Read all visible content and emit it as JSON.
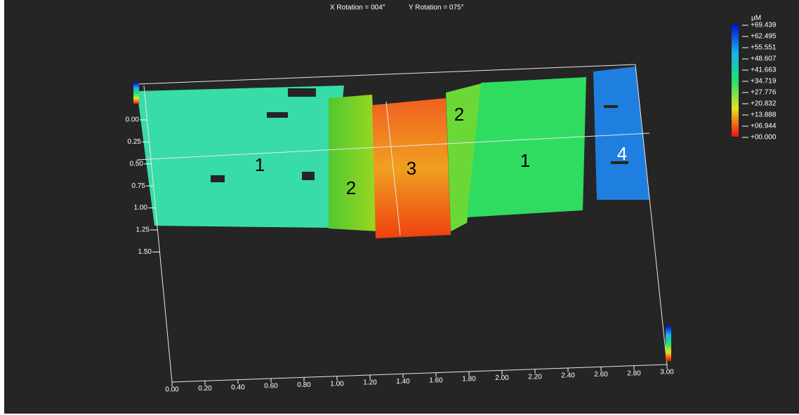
{
  "header": {
    "x_rotation": "X Rotation = 004°",
    "y_rotation": "Y Rotation = 075°"
  },
  "color_scale": {
    "unit": "µM",
    "labels": [
      "+69.439",
      "+62.495",
      "+55.551",
      "+48.607",
      "+41.663",
      "+34.719",
      "+27.776",
      "+20.832",
      "+13.888",
      "+06.944",
      "+00.000"
    ]
  },
  "y_axis": {
    "labels": [
      "0.00",
      "0.25",
      "0.50",
      "0.75",
      "1.00",
      "1.25",
      "1.50"
    ]
  },
  "x_axis": {
    "labels": [
      "0.00",
      "0.20",
      "0.40",
      "0.60",
      "0.80",
      "1.00",
      "1.20",
      "1.40",
      "1.60",
      "1.80",
      "2.00",
      "2.20",
      "2.40",
      "2.60",
      "2.80",
      "3.00"
    ]
  },
  "regions": [
    {
      "label": "1"
    },
    {
      "label": "2"
    },
    {
      "label": "3"
    },
    {
      "label": "2"
    },
    {
      "label": "1"
    },
    {
      "label": "4"
    }
  ]
}
